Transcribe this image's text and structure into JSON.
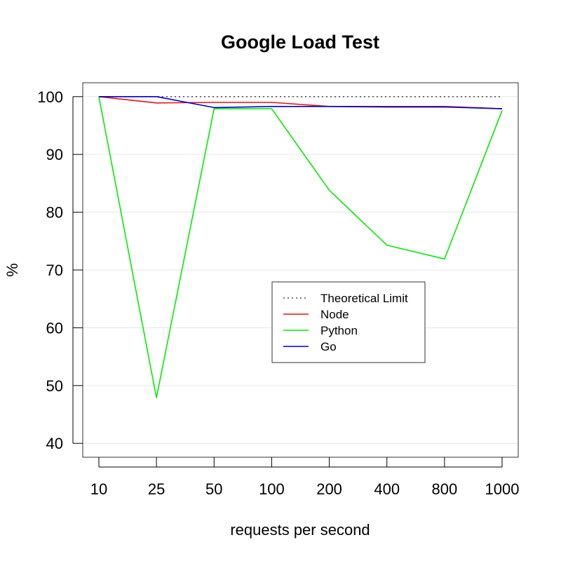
{
  "chart_data": {
    "type": "line",
    "title": "Google Load Test",
    "xlabel": "requests per second",
    "ylabel": "%",
    "categories": [
      "10",
      "25",
      "50",
      "100",
      "200",
      "400",
      "800",
      "1000"
    ],
    "ylim": [
      37.6,
      102.4
    ],
    "yticks": [
      40,
      50,
      60,
      70,
      80,
      90,
      100
    ],
    "grid": "horizontal",
    "legend_position": "center-right",
    "series": [
      {
        "name": "Theoretical Limit",
        "color": "#555555",
        "dash": "dotted",
        "values": [
          100,
          100,
          100,
          100,
          100,
          100,
          100,
          100
        ]
      },
      {
        "name": "Node",
        "color": "#ee1111",
        "dash": "solid",
        "values": [
          100,
          98.9,
          99.0,
          99.0,
          98.3,
          98.3,
          98.3,
          97.9
        ]
      },
      {
        "name": "Python",
        "color": "#00ee00",
        "dash": "solid",
        "values": [
          100,
          47.9,
          97.9,
          97.9,
          83.8,
          74.3,
          71.9,
          97.6
        ]
      },
      {
        "name": "Go",
        "color": "#0000cc",
        "dash": "solid",
        "values": [
          100,
          100,
          98.1,
          98.3,
          98.3,
          98.2,
          98.2,
          97.9
        ]
      }
    ]
  }
}
